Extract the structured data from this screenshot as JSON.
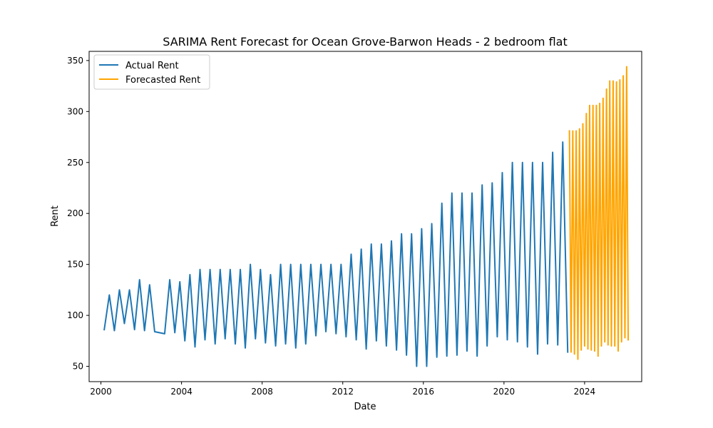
{
  "chart_data": {
    "type": "line",
    "title": "SARIMA Rent Forecast for Ocean Grove-Barwon Heads - 2 bedroom flat",
    "xlabel": "Date",
    "ylabel": "Rent",
    "xlim": [
      "1999-06-01",
      "2026-11-01"
    ],
    "ylim": [
      35,
      359
    ],
    "x_ticks": [
      "2000",
      "2004",
      "2008",
      "2012",
      "2016",
      "2020",
      "2024"
    ],
    "y_ticks": [
      50,
      100,
      150,
      200,
      250,
      300,
      350
    ],
    "grid": false,
    "legend_position": "top-left",
    "series": [
      {
        "name": "Actual Rent",
        "color": "#1f77b4",
        "points": [
          [
            "2000-03-01",
            86
          ],
          [
            "2000-06-01",
            120
          ],
          [
            "2000-09-01",
            85
          ],
          [
            "2000-12-01",
            125
          ],
          [
            "2001-03-01",
            92
          ],
          [
            "2001-06-01",
            125
          ],
          [
            "2001-09-01",
            86
          ],
          [
            "2001-12-01",
            135
          ],
          [
            "2002-03-01",
            85
          ],
          [
            "2002-06-01",
            130
          ],
          [
            "2002-09-01",
            84
          ],
          [
            "2003-03-01",
            82
          ],
          [
            "2003-06-01",
            135
          ],
          [
            "2003-09-01",
            83
          ],
          [
            "2003-12-01",
            133
          ],
          [
            "2004-03-01",
            75
          ],
          [
            "2004-06-01",
            140
          ],
          [
            "2004-09-01",
            69
          ],
          [
            "2004-12-01",
            145
          ],
          [
            "2005-03-01",
            76
          ],
          [
            "2005-06-01",
            145
          ],
          [
            "2005-09-01",
            72
          ],
          [
            "2005-12-01",
            145
          ],
          [
            "2006-03-01",
            77
          ],
          [
            "2006-06-01",
            145
          ],
          [
            "2006-09-01",
            72
          ],
          [
            "2006-12-01",
            145
          ],
          [
            "2007-03-01",
            68
          ],
          [
            "2007-06-01",
            150
          ],
          [
            "2007-09-01",
            77
          ],
          [
            "2007-12-01",
            145
          ],
          [
            "2008-03-01",
            73
          ],
          [
            "2008-06-01",
            140
          ],
          [
            "2008-09-01",
            70
          ],
          [
            "2008-12-01",
            150
          ],
          [
            "2009-03-01",
            72
          ],
          [
            "2009-06-01",
            150
          ],
          [
            "2009-09-01",
            68
          ],
          [
            "2009-12-01",
            150
          ],
          [
            "2010-03-01",
            72
          ],
          [
            "2010-06-01",
            150
          ],
          [
            "2010-09-01",
            80
          ],
          [
            "2010-12-01",
            150
          ],
          [
            "2011-03-01",
            84
          ],
          [
            "2011-06-01",
            150
          ],
          [
            "2011-09-01",
            82
          ],
          [
            "2011-12-01",
            150
          ],
          [
            "2012-03-01",
            79
          ],
          [
            "2012-06-01",
            160
          ],
          [
            "2012-09-01",
            76
          ],
          [
            "2012-12-01",
            165
          ],
          [
            "2013-03-01",
            67
          ],
          [
            "2013-06-01",
            170
          ],
          [
            "2013-09-01",
            75
          ],
          [
            "2013-12-01",
            170
          ],
          [
            "2014-03-01",
            70
          ],
          [
            "2014-06-01",
            173
          ],
          [
            "2014-09-01",
            66
          ],
          [
            "2014-12-01",
            180
          ],
          [
            "2015-03-01",
            61
          ],
          [
            "2015-06-01",
            180
          ],
          [
            "2015-09-01",
            50
          ],
          [
            "2015-12-01",
            185
          ],
          [
            "2016-03-01",
            50
          ],
          [
            "2016-06-01",
            190
          ],
          [
            "2016-09-01",
            59
          ],
          [
            "2016-12-01",
            210
          ],
          [
            "2017-03-01",
            60
          ],
          [
            "2017-06-01",
            220
          ],
          [
            "2017-09-01",
            61
          ],
          [
            "2017-12-01",
            220
          ],
          [
            "2018-03-01",
            65
          ],
          [
            "2018-06-01",
            220
          ],
          [
            "2018-09-01",
            60
          ],
          [
            "2018-12-01",
            228
          ],
          [
            "2019-03-01",
            70
          ],
          [
            "2019-06-01",
            230
          ],
          [
            "2019-09-01",
            79
          ],
          [
            "2019-12-01",
            240
          ],
          [
            "2020-03-01",
            76
          ],
          [
            "2020-06-01",
            250
          ],
          [
            "2020-09-01",
            74
          ],
          [
            "2020-12-01",
            250
          ],
          [
            "2021-03-01",
            69
          ],
          [
            "2021-06-01",
            250
          ],
          [
            "2021-09-01",
            62
          ],
          [
            "2021-12-01",
            250
          ],
          [
            "2022-03-01",
            72
          ],
          [
            "2022-06-01",
            260
          ],
          [
            "2022-09-01",
            71
          ],
          [
            "2022-12-01",
            270
          ],
          [
            "2023-03-01",
            64
          ]
        ]
      },
      {
        "name": "Forecasted Rent",
        "color": "#ffa500",
        "points": [
          [
            "2023-04-01",
            281
          ],
          [
            "2023-05-01",
            64
          ],
          [
            "2023-06-01",
            281
          ],
          [
            "2023-07-01",
            62
          ],
          [
            "2023-08-01",
            281
          ],
          [
            "2023-09-01",
            57
          ],
          [
            "2023-10-01",
            283
          ],
          [
            "2023-11-01",
            66
          ],
          [
            "2023-12-01",
            288
          ],
          [
            "2024-01-01",
            70
          ],
          [
            "2024-02-01",
            298
          ],
          [
            "2024-03-01",
            67
          ],
          [
            "2024-04-01",
            306
          ],
          [
            "2024-05-01",
            66
          ],
          [
            "2024-06-01",
            306
          ],
          [
            "2024-07-01",
            65
          ],
          [
            "2024-08-01",
            306
          ],
          [
            "2024-09-01",
            60
          ],
          [
            "2024-10-01",
            308
          ],
          [
            "2024-11-01",
            70
          ],
          [
            "2024-12-01",
            313
          ],
          [
            "2025-01-01",
            74
          ],
          [
            "2025-02-01",
            322
          ],
          [
            "2025-03-01",
            71
          ],
          [
            "2025-04-01",
            330
          ],
          [
            "2025-05-01",
            70
          ],
          [
            "2025-06-01",
            330
          ],
          [
            "2025-07-01",
            70
          ],
          [
            "2025-08-01",
            329
          ],
          [
            "2025-09-01",
            65
          ],
          [
            "2025-10-01",
            331
          ],
          [
            "2025-11-01",
            74
          ],
          [
            "2025-12-01",
            335
          ],
          [
            "2026-01-01",
            78
          ],
          [
            "2026-02-01",
            344
          ],
          [
            "2026-03-01",
            76
          ]
        ]
      }
    ]
  }
}
